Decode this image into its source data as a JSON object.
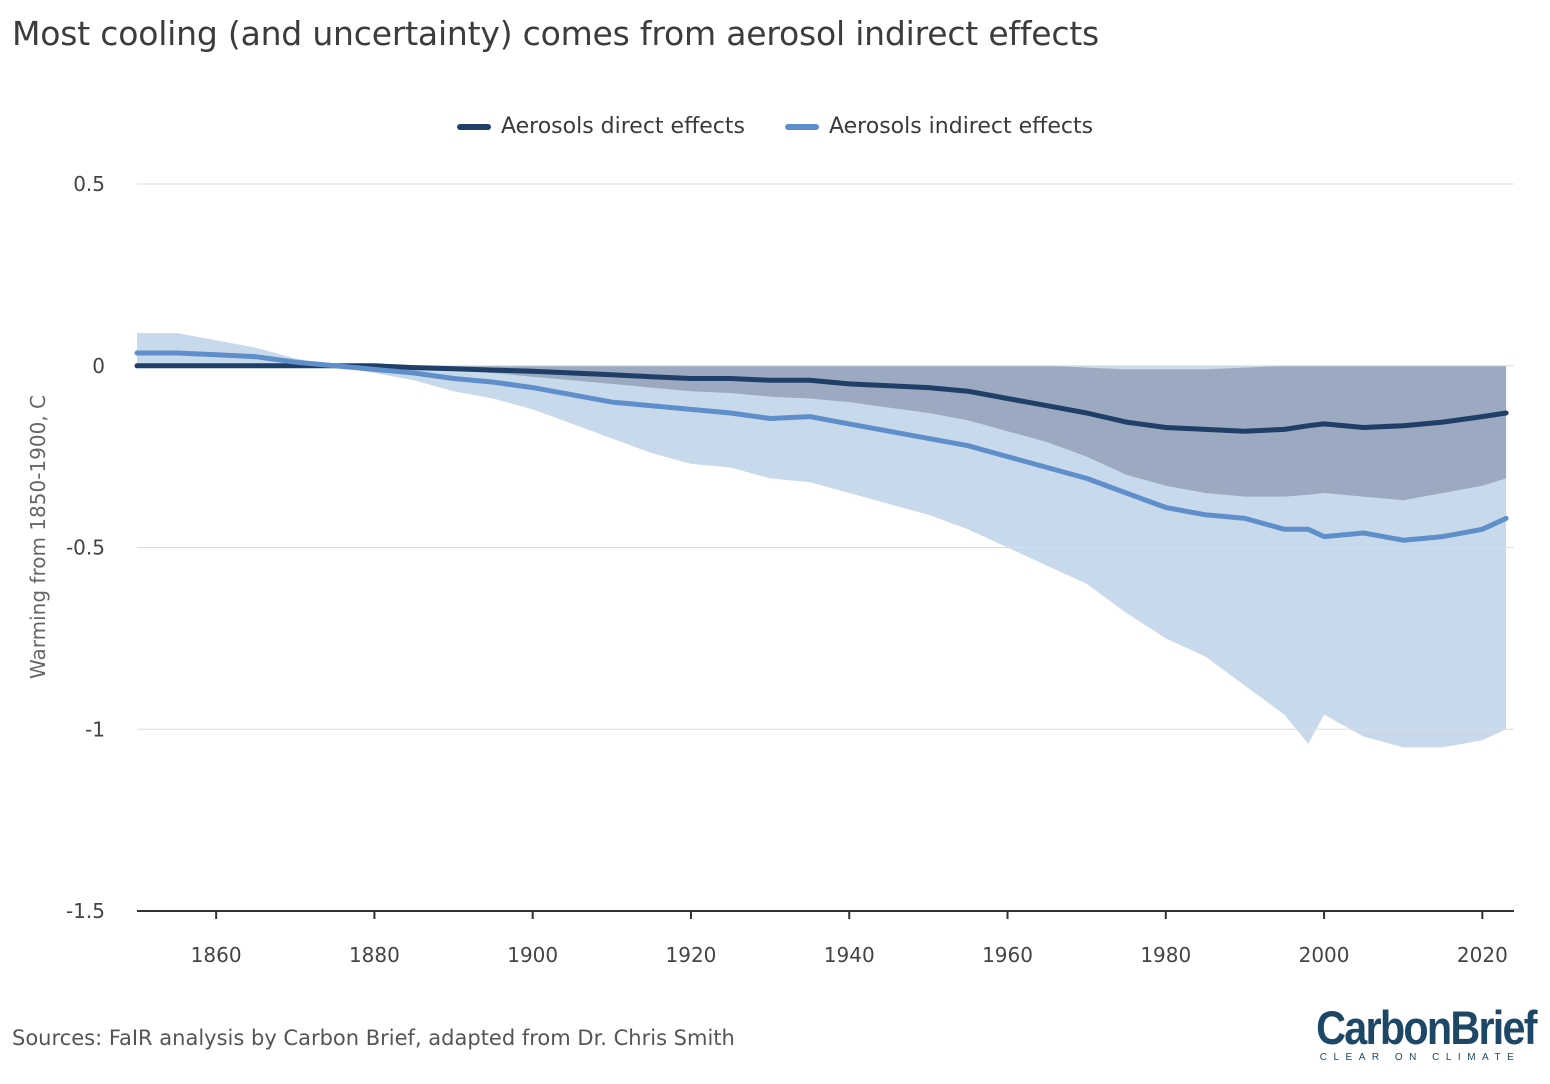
{
  "title": "Most cooling (and uncertainty) comes from aerosol indirect effects",
  "source": "Sources: FaIR analysis by Carbon Brief, adapted from Dr. Chris Smith",
  "logo": {
    "name": "CarbonBrief",
    "tagline": "CLEAR ON CLIMATE"
  },
  "colors": {
    "direct": "#1f3e68",
    "indirect": "#5f8fcb",
    "direct_band": "#8b9ab1",
    "indirect_band": "#c9d9ec",
    "logo": "#1d4766"
  },
  "chart_data": {
    "type": "line",
    "title": "Most cooling (and uncertainty) comes from aerosol indirect effects",
    "xlabel": "",
    "ylabel": "Warming from 1850-1900, C",
    "xlim": [
      1850,
      2024
    ],
    "ylim": [
      -1.5,
      0.5
    ],
    "x_ticks": [
      1860,
      1880,
      1900,
      1920,
      1940,
      1960,
      1980,
      2000,
      2020
    ],
    "y_ticks": [
      0.5,
      0,
      -0.5,
      -1,
      -1.5
    ],
    "y_tick_labels": [
      "0.5",
      "0",
      "-0.5",
      "-1",
      "-1.5"
    ],
    "grid": true,
    "legend_position": "top-center",
    "x": [
      1850,
      1855,
      1860,
      1865,
      1870,
      1875,
      1880,
      1885,
      1890,
      1895,
      1900,
      1905,
      1910,
      1915,
      1920,
      1925,
      1930,
      1935,
      1940,
      1945,
      1950,
      1955,
      1960,
      1965,
      1970,
      1975,
      1980,
      1985,
      1990,
      1995,
      1998,
      2000,
      2005,
      2010,
      2015,
      2020,
      2023
    ],
    "series": [
      {
        "name": "Aerosols direct effects",
        "values": [
          0.0,
          0.0,
          0.0,
          0.0,
          0.0,
          0.0,
          0.0,
          -0.005,
          -0.008,
          -0.012,
          -0.015,
          -0.02,
          -0.025,
          -0.03,
          -0.035,
          -0.035,
          -0.04,
          -0.04,
          -0.05,
          -0.055,
          -0.06,
          -0.07,
          -0.09,
          -0.11,
          -0.13,
          -0.155,
          -0.17,
          -0.175,
          -0.18,
          -0.175,
          -0.165,
          -0.16,
          -0.17,
          -0.165,
          -0.155,
          -0.14,
          -0.13
        ],
        "range_low": [
          0.0,
          0.0,
          0.0,
          0.0,
          0.0,
          0.0,
          0.0,
          -0.008,
          -0.012,
          -0.02,
          -0.03,
          -0.04,
          -0.05,
          -0.06,
          -0.07,
          -0.075,
          -0.085,
          -0.09,
          -0.1,
          -0.115,
          -0.13,
          -0.15,
          -0.18,
          -0.21,
          -0.25,
          -0.3,
          -0.33,
          -0.35,
          -0.36,
          -0.36,
          -0.355,
          -0.35,
          -0.36,
          -0.37,
          -0.35,
          -0.33,
          -0.31
        ],
        "range_high": [
          0.0,
          0.0,
          0.0,
          0.0,
          0.0,
          0.0,
          0.0,
          0.0,
          0.0,
          0.0,
          0.0,
          0.0,
          0.0,
          0.0,
          0.0,
          0.0,
          0.0,
          0.0,
          0.0,
          0.0,
          0.0,
          0.0,
          0.0,
          0.0,
          -0.005,
          -0.01,
          -0.01,
          -0.01,
          -0.005,
          0.0,
          0.0,
          0.0,
          0.0,
          0.0,
          0.0,
          0.0,
          0.0
        ]
      },
      {
        "name": "Aerosols indirect effects",
        "values": [
          0.035,
          0.035,
          0.03,
          0.025,
          0.01,
          0.0,
          -0.01,
          -0.02,
          -0.035,
          -0.045,
          -0.06,
          -0.08,
          -0.1,
          -0.11,
          -0.12,
          -0.13,
          -0.145,
          -0.14,
          -0.16,
          -0.18,
          -0.2,
          -0.22,
          -0.25,
          -0.28,
          -0.31,
          -0.35,
          -0.39,
          -0.41,
          -0.42,
          -0.45,
          -0.45,
          -0.47,
          -0.46,
          -0.48,
          -0.47,
          -0.45,
          -0.42
        ],
        "range_low": [
          0.0,
          0.0,
          0.0,
          0.0,
          0.0,
          0.0,
          -0.02,
          -0.04,
          -0.07,
          -0.09,
          -0.12,
          -0.16,
          -0.2,
          -0.24,
          -0.27,
          -0.28,
          -0.31,
          -0.32,
          -0.35,
          -0.38,
          -0.41,
          -0.45,
          -0.5,
          -0.55,
          -0.6,
          -0.68,
          -0.75,
          -0.8,
          -0.88,
          -0.96,
          -1.04,
          -0.96,
          -1.02,
          -1.05,
          -1.05,
          -1.03,
          -1.0
        ],
        "range_high": [
          0.09,
          0.09,
          0.07,
          0.05,
          0.02,
          0.0,
          0.0,
          0.0,
          0.0,
          0.0,
          0.0,
          0.0,
          0.0,
          0.0,
          0.0,
          0.0,
          0.0,
          0.0,
          0.0,
          0.0,
          0.0,
          0.0,
          0.0,
          0.0,
          0.0,
          0.0,
          0.0,
          0.0,
          0.0,
          0.0,
          0.0,
          0.0,
          0.0,
          0.0,
          0.0,
          0.0,
          0.0
        ]
      }
    ]
  }
}
